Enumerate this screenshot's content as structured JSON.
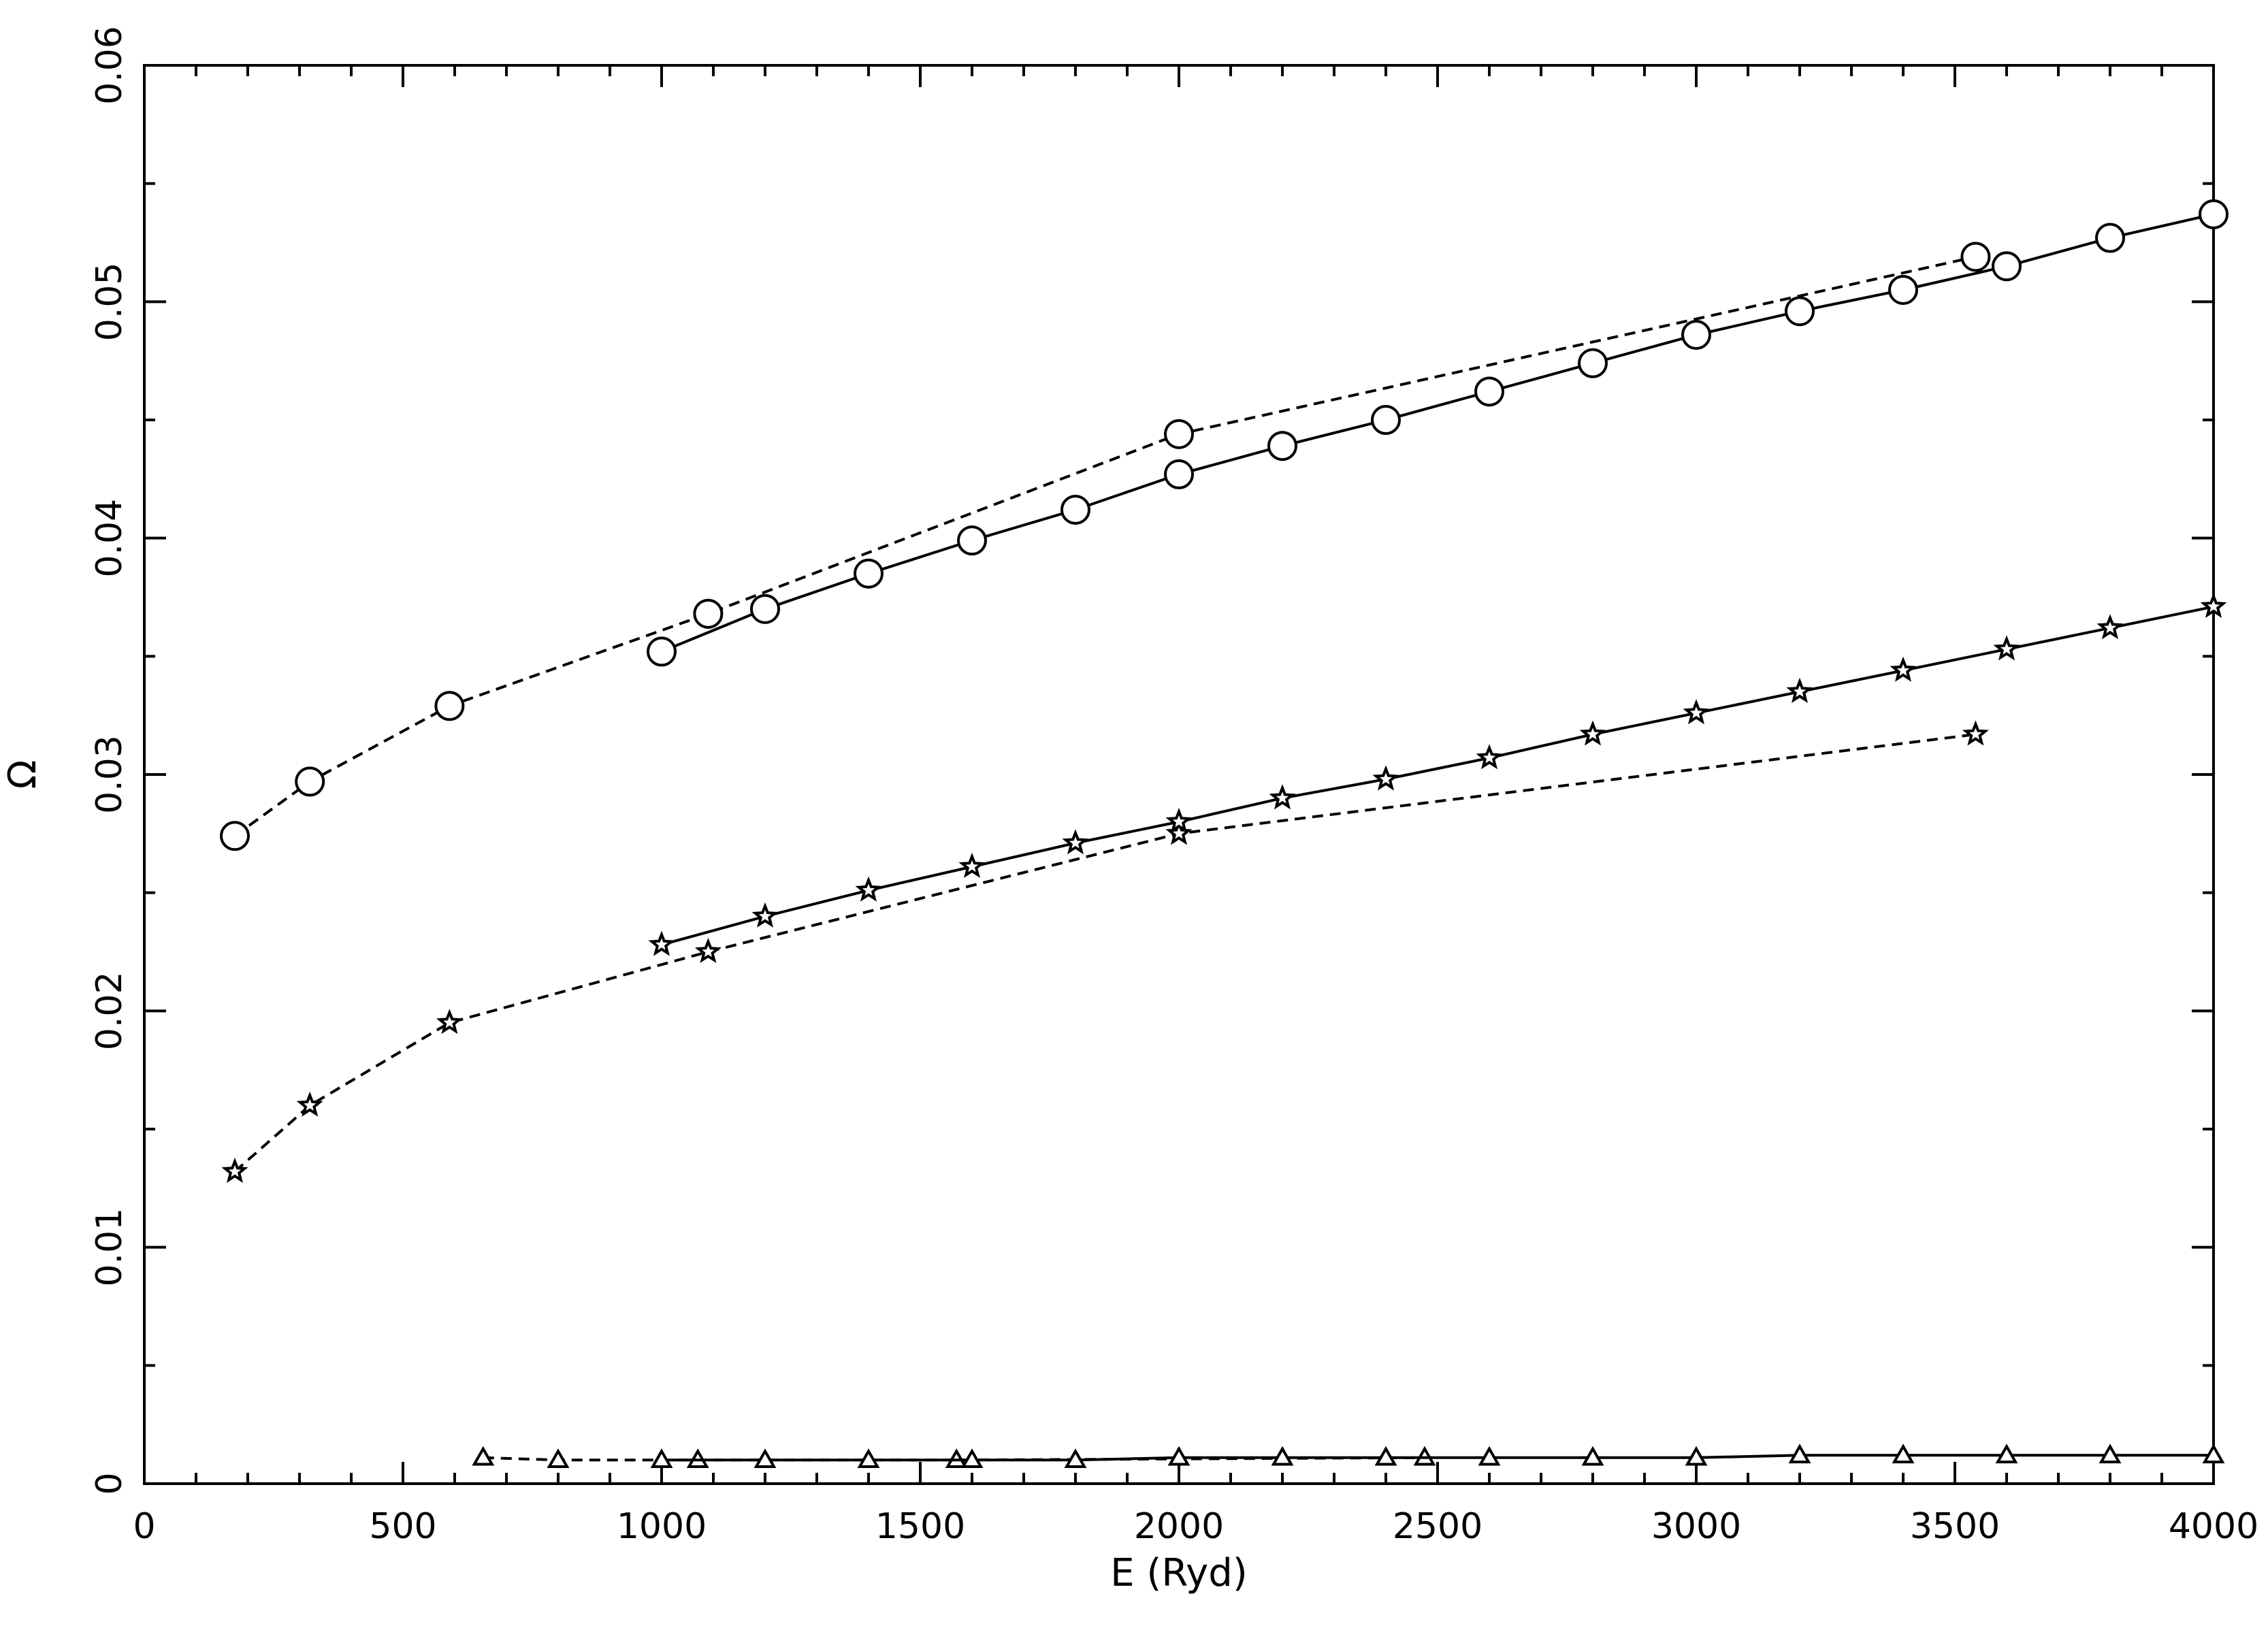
{
  "chart_data": {
    "type": "line",
    "title": "",
    "xlabel": "E (Ryd)",
    "ylabel": "Ω",
    "xlim": [
      0,
      4000
    ],
    "ylim": [
      0,
      0.06
    ],
    "xticks": [
      "0",
      "500",
      "1000",
      "1500",
      "2000",
      "2500",
      "3000",
      "3500",
      "4000"
    ],
    "yticks": [
      "0",
      "0.01",
      "0.02",
      "0.03",
      "0.04",
      "0.05",
      "0.06"
    ],
    "grid": false,
    "legend": "none",
    "series": [
      {
        "marker": "circle",
        "line": "dashed",
        "x": [
          175,
          320,
          590,
          1090,
          2000,
          3540
        ],
        "y": [
          0.0274,
          0.0297,
          0.0329,
          0.0368,
          0.0444,
          0.0519
        ]
      },
      {
        "marker": "circle",
        "line": "solid",
        "x": [
          1000,
          1200,
          1400,
          1600,
          1800,
          2000,
          2200,
          2400,
          2600,
          2800,
          3000,
          3200,
          3400,
          3600,
          3800,
          4000
        ],
        "y": [
          0.0352,
          0.037,
          0.0385,
          0.0399,
          0.0412,
          0.0427,
          0.0439,
          0.045,
          0.0462,
          0.0474,
          0.0486,
          0.0496,
          0.0505,
          0.0515,
          0.0527,
          0.0537
        ]
      },
      {
        "marker": "star",
        "line": "dashed",
        "x": [
          175,
          320,
          590,
          1090,
          2000,
          3540
        ],
        "y": [
          0.0132,
          0.016,
          0.0195,
          0.0225,
          0.0275,
          0.0317
        ]
      },
      {
        "marker": "star",
        "line": "solid",
        "x": [
          1000,
          1200,
          1400,
          1600,
          1800,
          2000,
          2200,
          2400,
          2600,
          2800,
          3000,
          3200,
          3400,
          3600,
          3800,
          4000
        ],
        "y": [
          0.0228,
          0.024,
          0.0251,
          0.0261,
          0.0271,
          0.028,
          0.029,
          0.0298,
          0.0307,
          0.0317,
          0.0326,
          0.0335,
          0.0344,
          0.0353,
          0.0362,
          0.0371
        ]
      },
      {
        "marker": "triangle",
        "line": "dashed",
        "x": [
          655,
          800,
          1070,
          1570,
          2475
        ],
        "y": [
          0.0011,
          0.001,
          0.001,
          0.001,
          0.0011
        ]
      },
      {
        "marker": "triangle",
        "line": "solid",
        "x": [
          1000,
          1200,
          1400,
          1600,
          1800,
          2000,
          2200,
          2400,
          2600,
          2800,
          3000,
          3200,
          3400,
          3600,
          3800,
          4000
        ],
        "y": [
          0.001,
          0.001,
          0.001,
          0.001,
          0.001,
          0.0011,
          0.0011,
          0.0011,
          0.0011,
          0.0011,
          0.0011,
          0.0012,
          0.0012,
          0.0012,
          0.0012,
          0.0012
        ]
      }
    ]
  }
}
